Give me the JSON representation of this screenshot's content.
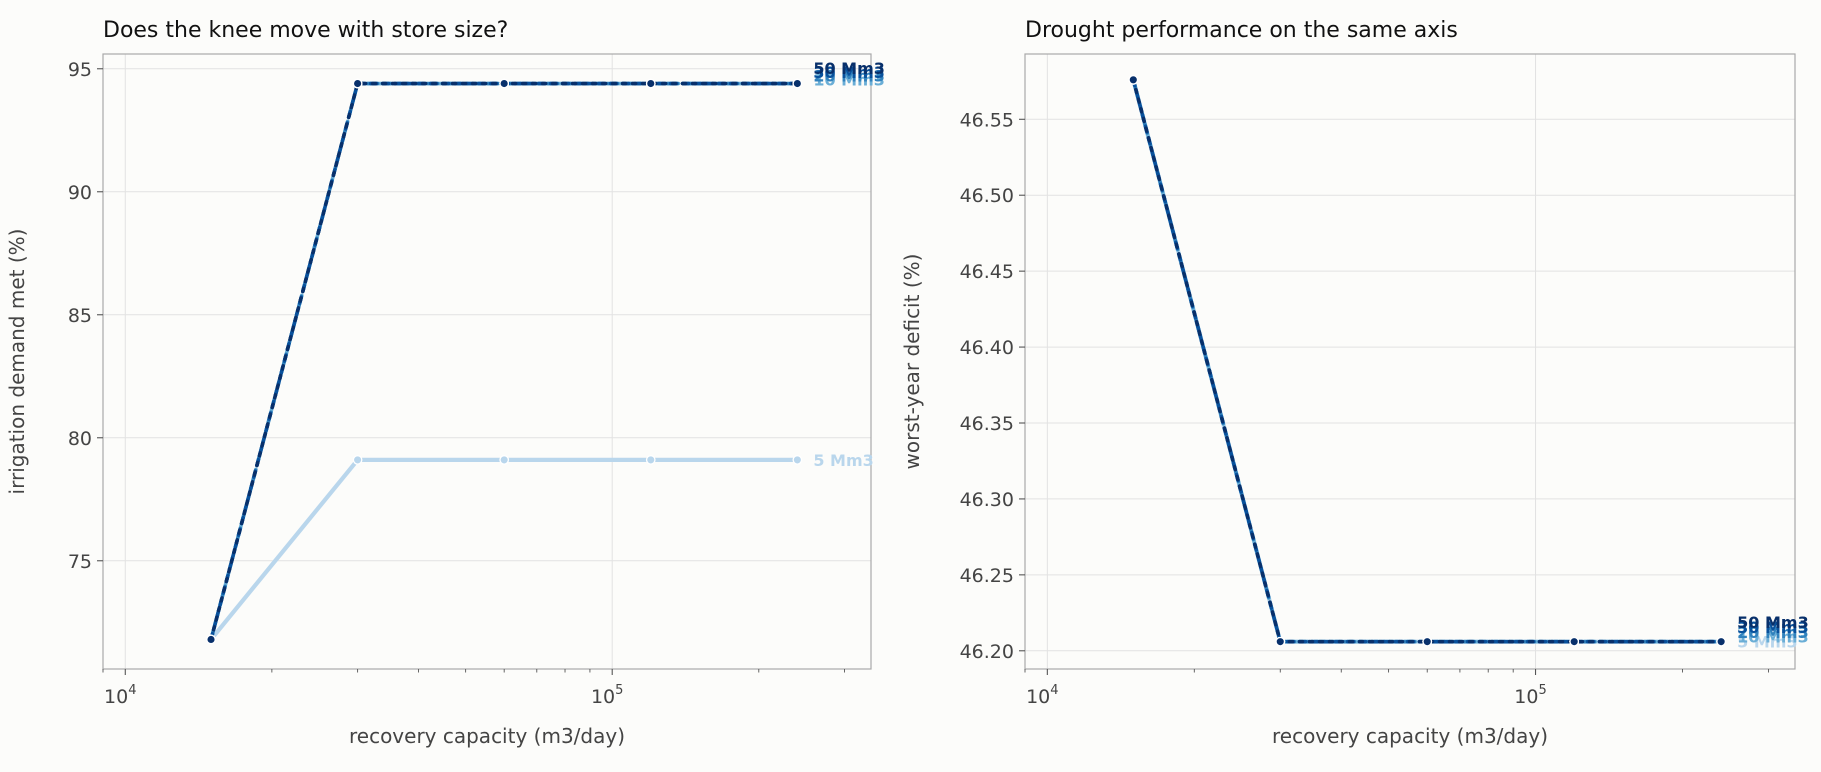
{
  "chart_data": [
    {
      "type": "line",
      "title": "Does the knee move with store size?",
      "xlabel": "recovery capacity (m3/day)",
      "ylabel": "irrigation demand met (%)",
      "xscale": "log",
      "xlim": [
        9000,
        340000
      ],
      "ylim": [
        70.6,
        95.6
      ],
      "grid": true,
      "x_ticks": [
        {
          "value": 10000,
          "base": "10",
          "exp": "4"
        },
        {
          "value": 100000,
          "base": "10",
          "exp": "5"
        }
      ],
      "y_ticks": [
        {
          "value": 75,
          "label": "75"
        },
        {
          "value": 80,
          "label": "80"
        },
        {
          "value": 85,
          "label": "85"
        },
        {
          "value": 90,
          "label": "90"
        },
        {
          "value": 95,
          "label": "95"
        }
      ],
      "x": [
        15000,
        30000,
        60000,
        120000,
        240000
      ],
      "series": [
        {
          "name": "5 Mm3",
          "color": "#b9d6ec",
          "values": [
            71.8,
            79.1,
            79.1,
            79.1,
            79.1
          ]
        },
        {
          "name": "10 Mm3",
          "color": "#6aaed6",
          "values": [
            71.8,
            94.4,
            94.4,
            94.4,
            94.4
          ]
        },
        {
          "name": "20 Mm3",
          "color": "#3182bd",
          "values": [
            71.8,
            94.4,
            94.4,
            94.4,
            94.4
          ]
        },
        {
          "name": "30 Mm3",
          "color": "#08519c",
          "values": [
            71.8,
            94.4,
            94.4,
            94.4,
            94.4
          ]
        },
        {
          "name": "50 Mm3",
          "color": "#08306b",
          "values": [
            71.8,
            94.4,
            94.4,
            94.4,
            94.4
          ]
        }
      ]
    },
    {
      "type": "line",
      "title": "Drought performance on the same axis",
      "xlabel": "recovery capacity (m3/day)",
      "ylabel": "worst-year deficit (%)",
      "xscale": "log",
      "xlim": [
        9000,
        340000
      ],
      "ylim": [
        46.188,
        46.593
      ],
      "grid": true,
      "x_ticks": [
        {
          "value": 10000,
          "base": "10",
          "exp": "4"
        },
        {
          "value": 100000,
          "base": "10",
          "exp": "5"
        }
      ],
      "y_ticks": [
        {
          "value": 46.2,
          "label": "46.20"
        },
        {
          "value": 46.25,
          "label": "46.25"
        },
        {
          "value": 46.3,
          "label": "46.30"
        },
        {
          "value": 46.35,
          "label": "46.35"
        },
        {
          "value": 46.4,
          "label": "46.40"
        },
        {
          "value": 46.45,
          "label": "46.45"
        },
        {
          "value": 46.5,
          "label": "46.50"
        },
        {
          "value": 46.55,
          "label": "46.55"
        }
      ],
      "x": [
        15000,
        30000,
        60000,
        120000,
        240000
      ],
      "series": [
        {
          "name": "5 Mm3",
          "color": "#b9d6ec",
          "values": [
            46.576,
            46.206,
            46.206,
            46.206,
            46.206
          ]
        },
        {
          "name": "10 Mm3",
          "color": "#6aaed6",
          "values": [
            46.576,
            46.206,
            46.206,
            46.206,
            46.206
          ]
        },
        {
          "name": "20 Mm3",
          "color": "#3182bd",
          "values": [
            46.576,
            46.206,
            46.206,
            46.206,
            46.206
          ]
        },
        {
          "name": "30 Mm3",
          "color": "#08519c",
          "values": [
            46.576,
            46.206,
            46.206,
            46.206,
            46.206
          ]
        },
        {
          "name": "50 Mm3",
          "color": "#08306b",
          "values": [
            46.576,
            46.206,
            46.206,
            46.206,
            46.206
          ]
        }
      ]
    }
  ]
}
